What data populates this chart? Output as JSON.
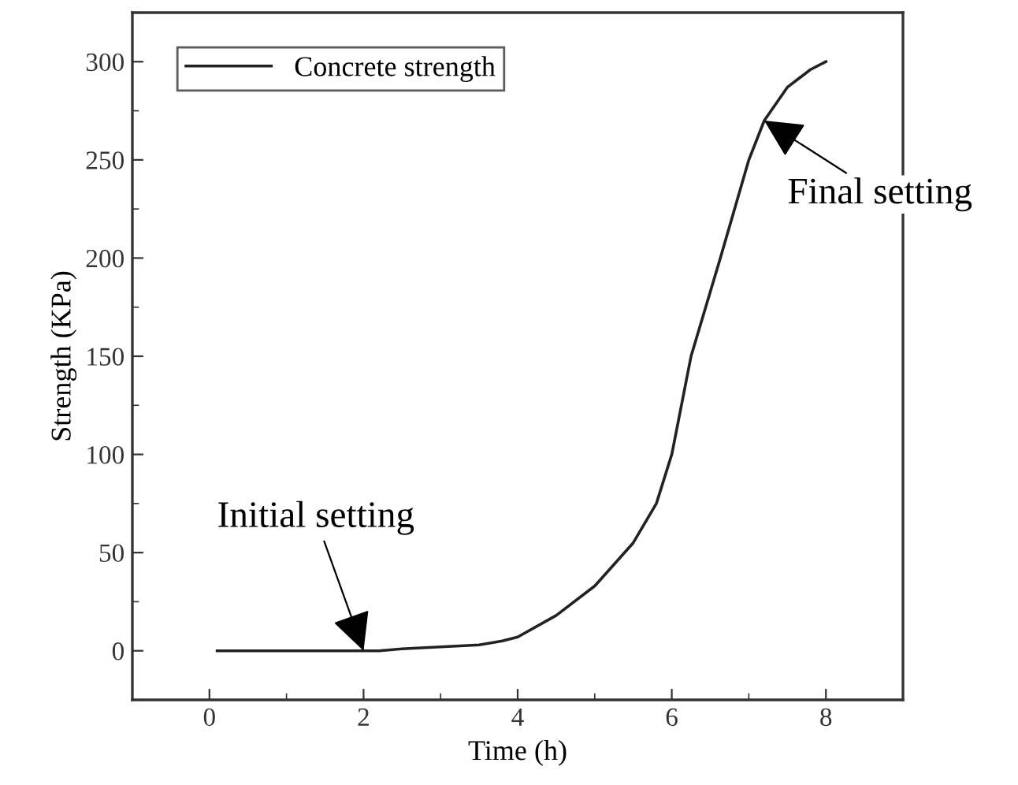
{
  "chart_data": {
    "type": "line",
    "xlabel": "Time (h)",
    "ylabel": "Strength (KPa)",
    "x": [
      0.1,
      1.0,
      2.2,
      2.5,
      3.0,
      3.5,
      3.8,
      4.0,
      4.5,
      5.0,
      5.5,
      5.8,
      6.0,
      6.25,
      6.63,
      7.0,
      7.2,
      7.5,
      7.8,
      8.0
    ],
    "series": [
      {
        "name": "Concrete strength",
        "color": "#222222",
        "values": [
          0,
          0,
          0,
          1,
          2,
          3,
          5,
          7,
          18,
          33,
          55,
          75,
          100,
          150,
          200,
          250,
          270,
          287,
          296,
          300
        ]
      }
    ],
    "xlim": [
      -1,
      9
    ],
    "ylim": [
      -25,
      325
    ],
    "xticks": [
      0,
      2,
      4,
      6,
      8
    ],
    "yticks": [
      0,
      50,
      100,
      150,
      200,
      250,
      300
    ],
    "annotations": [
      {
        "text": "Initial setting",
        "x": 2,
        "y": 0
      },
      {
        "text": "Final setting",
        "x": 7.2,
        "y": 270
      }
    ],
    "legend": "top left",
    "grid": false,
    "line_style": "solid",
    "marker": "none"
  }
}
